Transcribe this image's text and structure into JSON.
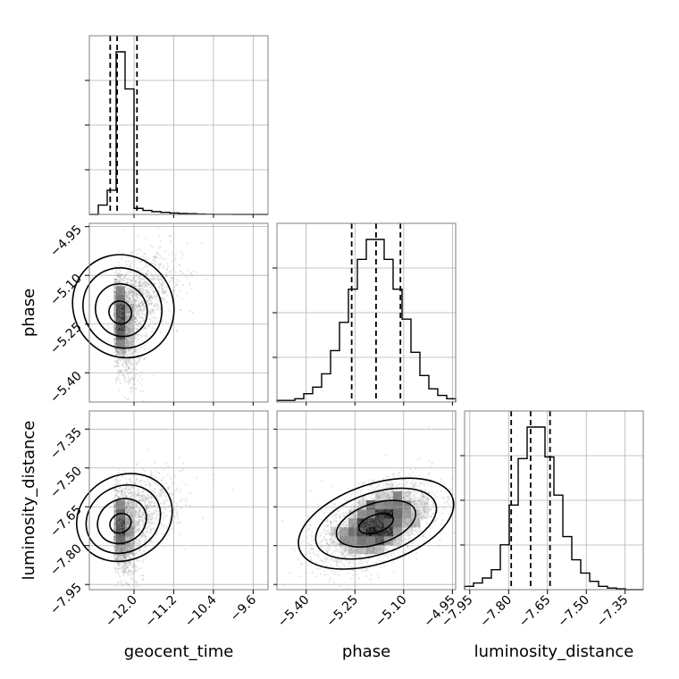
{
  "chart_data": {
    "type": "corner",
    "parameters": [
      "geocent_time",
      "phase",
      "luminosity_distance"
    ],
    "grid": true,
    "ranges": {
      "geocent_time": [
        -12.9,
        -9.3
      ],
      "phase": [
        -5.49,
        -4.94
      ],
      "luminosity_distance": [
        -7.97,
        -7.28
      ]
    },
    "ticks": {
      "geocent_time": [
        "-12.0",
        "-11.2",
        "-10.4",
        "-9.6"
      ],
      "phase": [
        "-5.40",
        "-5.25",
        "-5.10",
        "-4.95"
      ],
      "luminosity_distance": [
        "-7.95",
        "-7.80",
        "-7.65",
        "-7.50",
        "-7.35"
      ]
    },
    "tick_values": {
      "geocent_time": [
        -12.0,
        -11.2,
        -10.4,
        -9.6
      ],
      "phase": [
        -5.4,
        -5.25,
        -5.1,
        -4.95
      ],
      "luminosity_distance": [
        -7.95,
        -7.8,
        -7.65,
        -7.5,
        -7.35
      ]
    },
    "quantiles": {
      "geocent_time": [
        -12.48,
        -12.34,
        -11.94
      ],
      "phase": [
        -5.26,
        -5.185,
        -5.11
      ],
      "luminosity_distance": [
        -7.79,
        -7.715,
        -7.64
      ]
    },
    "histograms": {
      "geocent_time": {
        "edges_range": [
          -12.9,
          -9.3
        ],
        "counts": [
          0.0,
          0.2,
          0.52,
          3.5,
          2.7,
          0.13,
          0.085,
          0.06,
          0.045,
          0.03,
          0.02,
          0.015,
          0.008,
          0.004,
          0.002,
          0.001,
          0,
          0,
          0,
          0
        ]
      },
      "phase": {
        "edges_range": [
          -5.49,
          -4.94
        ],
        "counts": [
          0.01,
          0.01,
          0.02,
          0.05,
          0.09,
          0.17,
          0.31,
          0.48,
          0.68,
          0.86,
          0.98,
          0.98,
          0.86,
          0.68,
          0.5,
          0.3,
          0.16,
          0.08,
          0.04,
          0.02
        ]
      },
      "luminosity_distance": {
        "edges_range": [
          -7.97,
          -7.28
        ],
        "counts": [
          0.02,
          0.04,
          0.07,
          0.12,
          0.27,
          0.51,
          0.79,
          0.98,
          0.98,
          0.8,
          0.57,
          0.32,
          0.18,
          0.1,
          0.05,
          0.02,
          0.01,
          0.005,
          0.0,
          0.0
        ]
      }
    },
    "samples_2d": [
      {
        "x": "geocent_time",
        "y": "phase",
        "center": [
          -12.4,
          -5.22
        ],
        "sd": [
          0.35,
          0.085
        ],
        "corr": 0.62,
        "skew_x": 1.6,
        "color": "#808080"
      },
      {
        "x": "geocent_time",
        "y": "luminosity_distance",
        "center": [
          -12.4,
          -7.72
        ],
        "sd": [
          0.35,
          0.085
        ],
        "corr": 0.55,
        "skew_x": 1.6,
        "color": "#808080"
      },
      {
        "x": "phase",
        "y": "luminosity_distance",
        "center": [
          -5.185,
          -7.715
        ],
        "sd": [
          0.085,
          0.08
        ],
        "corr": 0.5,
        "skew_x": 0,
        "color": "#808080"
      }
    ],
    "contour_color": "#000000",
    "hist_color": "#000000"
  }
}
